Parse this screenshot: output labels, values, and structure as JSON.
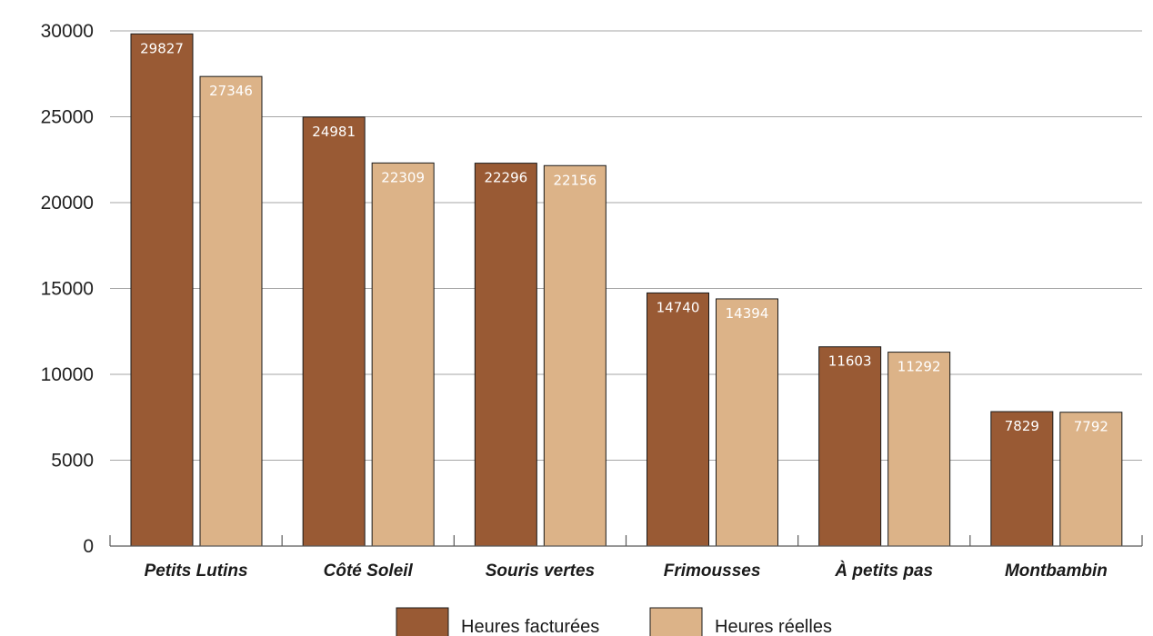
{
  "chart_data": {
    "type": "bar",
    "categories": [
      "Petits Lutins",
      "Côté Soleil",
      "Souris vertes",
      "Frimousses",
      "À petits pas",
      "Montbambin"
    ],
    "series": [
      {
        "name": "Heures facturées",
        "values": [
          29827,
          24981,
          22296,
          14740,
          11603,
          7829
        ],
        "color": "#995a34"
      },
      {
        "name": "Heures réelles",
        "values": [
          27346,
          22309,
          22156,
          14394,
          11292,
          7792
        ],
        "color": "#dcb388"
      }
    ],
    "yticks": [
      "0",
      "5000",
      "10000",
      "15000",
      "20000",
      "25000",
      "30000"
    ],
    "ylim": [
      0,
      30000
    ],
    "grid": true,
    "legend": "bottom-center",
    "gridColor": "#a6a6a6",
    "axisColor": "#595959"
  }
}
